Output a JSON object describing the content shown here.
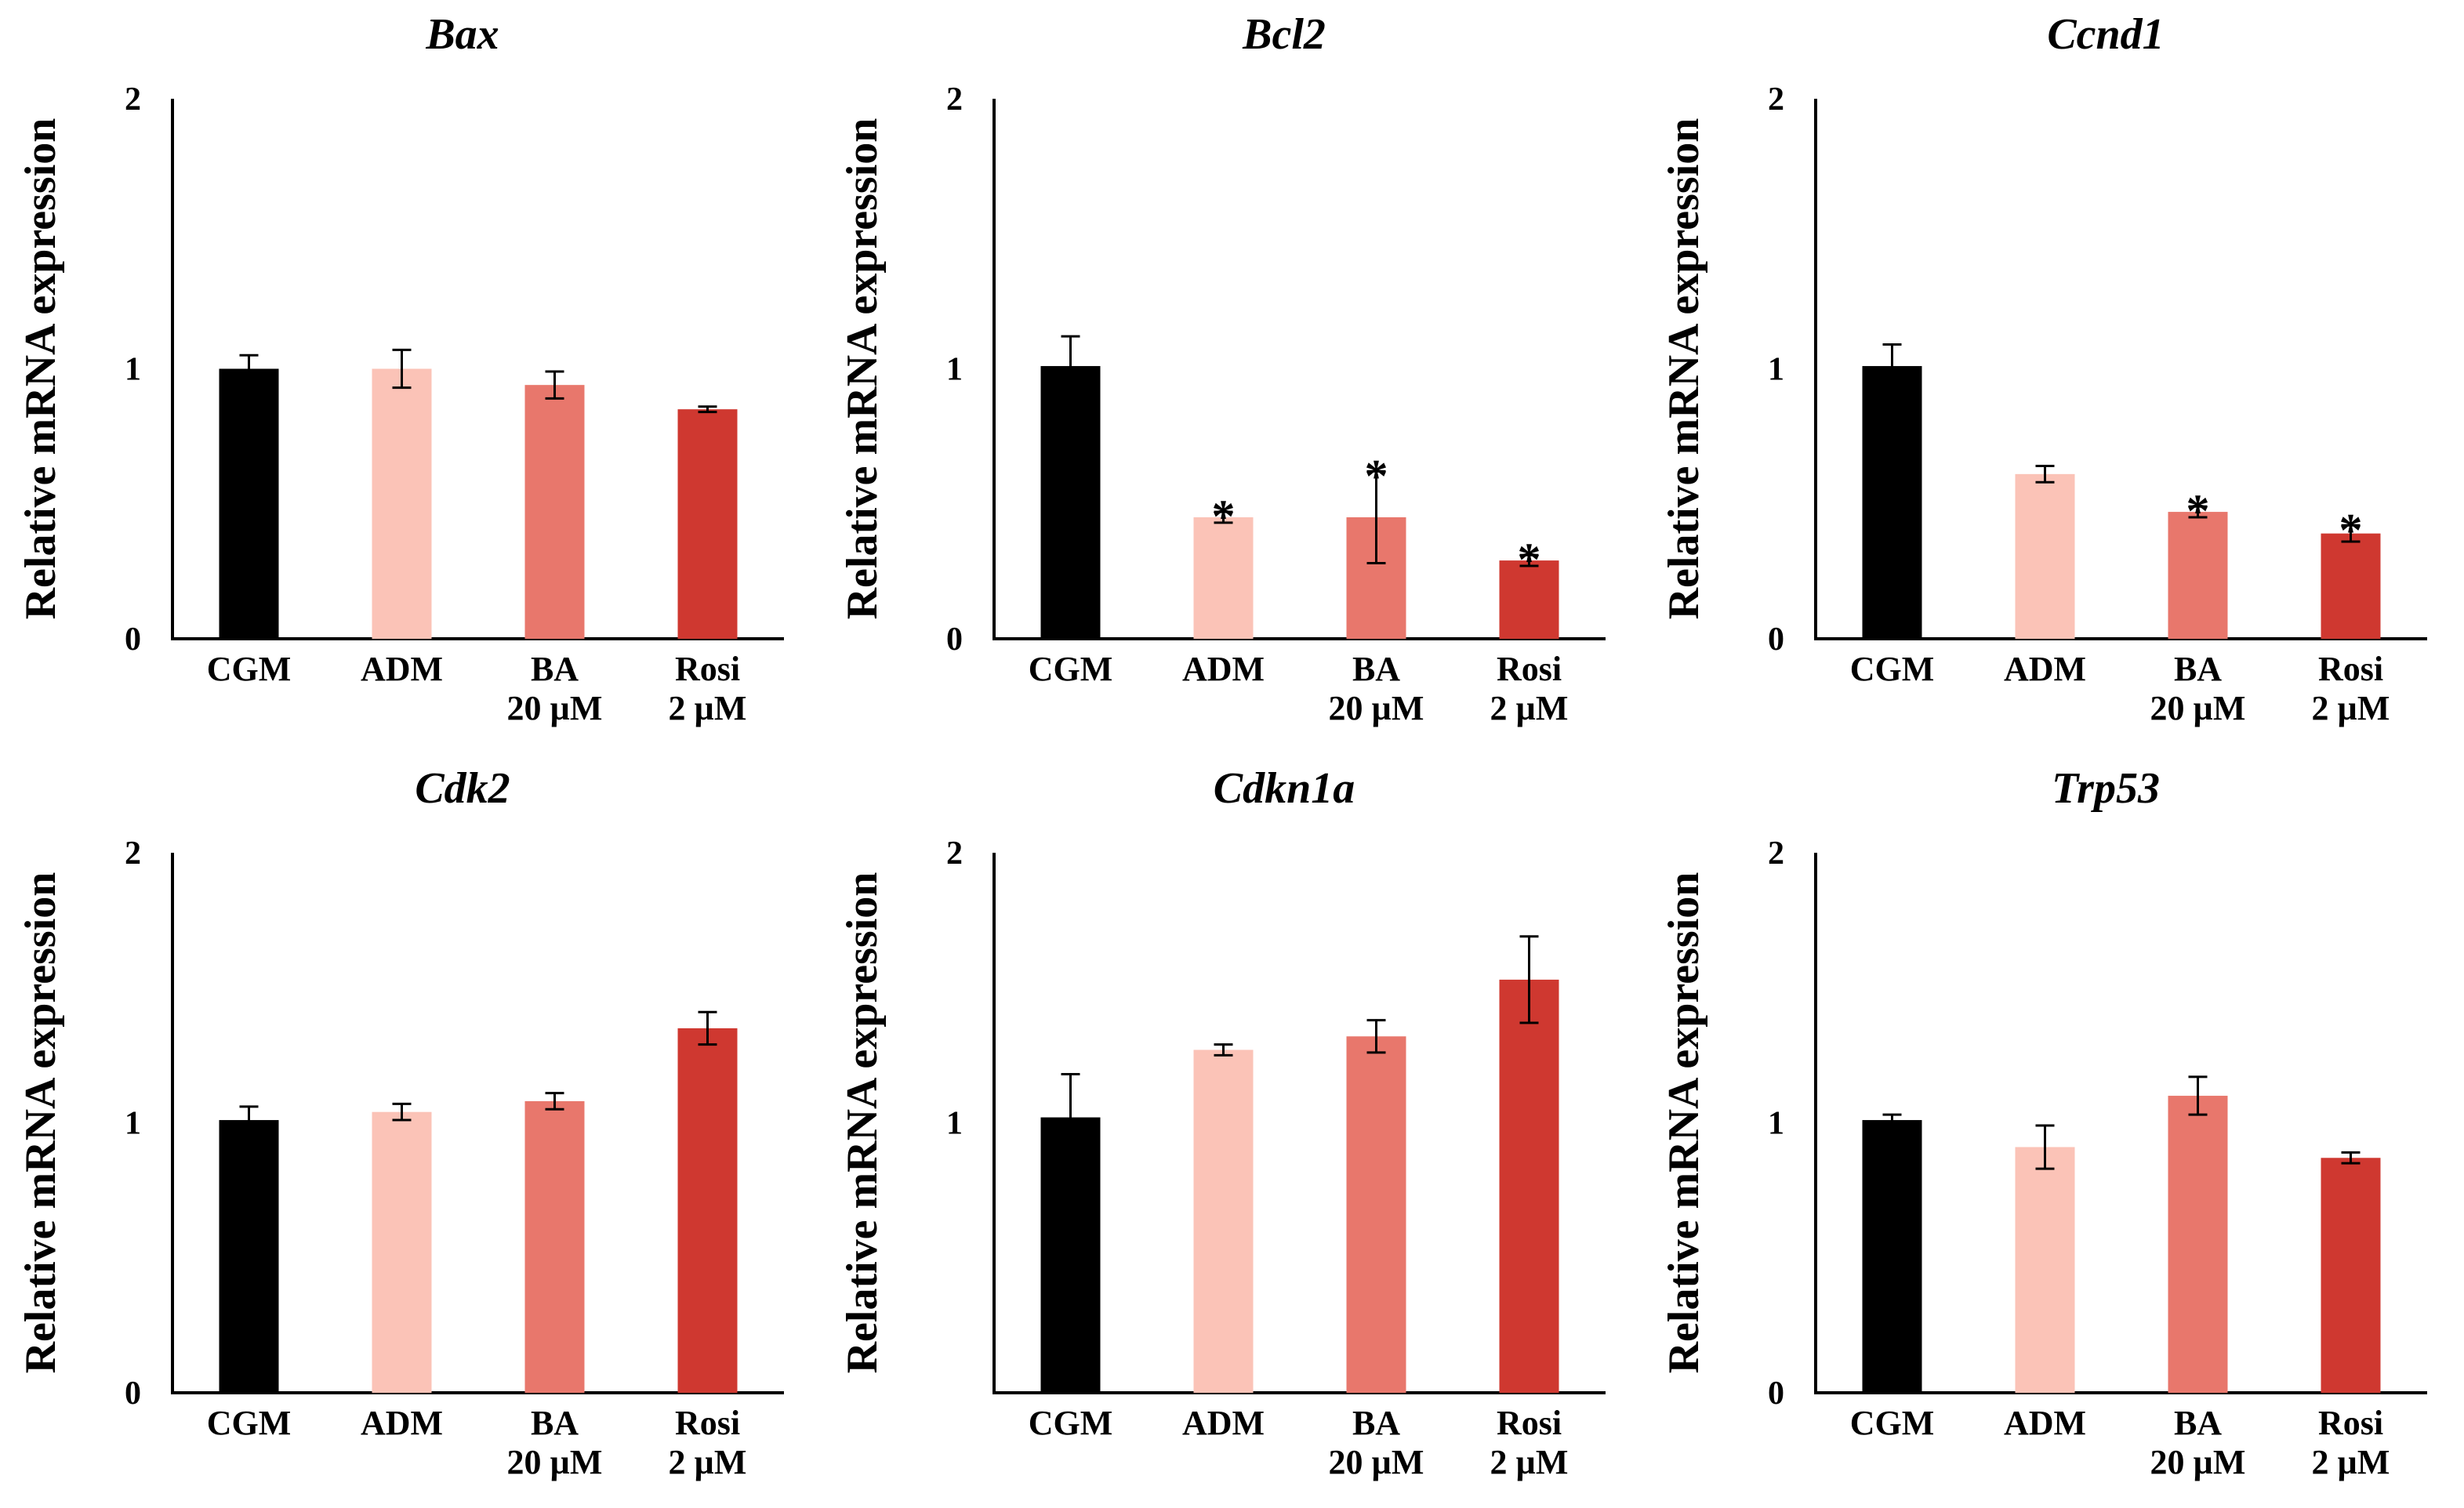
{
  "chart_data": [
    {
      "type": "bar",
      "title": "Bax",
      "ylabel": "Relative mRNA expression",
      "ylim": [
        0,
        2
      ],
      "yticks": [
        "0",
        "1",
        "2"
      ],
      "categories": [
        [
          "CGM"
        ],
        [
          "ADM"
        ],
        [
          "BA",
          "20 µM"
        ],
        [
          "Rosi",
          "2 µM"
        ]
      ],
      "values": [
        1.0,
        1.0,
        0.94,
        0.85
      ],
      "errors": [
        0.05,
        0.07,
        0.05,
        0.01
      ],
      "significance": [
        "",
        "",
        "",
        ""
      ],
      "colors": [
        "#000000",
        "#fbc3b7",
        "#e8776c",
        "#cf3830"
      ]
    },
    {
      "type": "bar",
      "title": "Bcl2",
      "ylabel": "Relative mRNA expression",
      "ylim": [
        0,
        2
      ],
      "yticks": [
        "0",
        "1",
        "2"
      ],
      "categories": [
        [
          "CGM"
        ],
        [
          "ADM"
        ],
        [
          "BA",
          "20 µM"
        ],
        [
          "Rosi",
          "2 µM"
        ]
      ],
      "values": [
        1.01,
        0.45,
        0.45,
        0.29
      ],
      "errors": [
        0.11,
        0.02,
        0.17,
        0.02
      ],
      "significance": [
        "",
        "*",
        "*",
        "*"
      ],
      "colors": [
        "#000000",
        "#fbc3b7",
        "#e8776c",
        "#cf3830"
      ]
    },
    {
      "type": "bar",
      "title": "Ccnd1",
      "ylabel": "Relative mRNA expression",
      "ylim": [
        0,
        2
      ],
      "yticks": [
        "0",
        "1",
        "2"
      ],
      "categories": [
        [
          "CGM"
        ],
        [
          "ADM"
        ],
        [
          "BA",
          "20 µM"
        ],
        [
          "Rosi",
          "2 µM"
        ]
      ],
      "values": [
        1.01,
        0.61,
        0.47,
        0.39
      ],
      "errors": [
        0.08,
        0.03,
        0.02,
        0.03
      ],
      "significance": [
        "",
        "",
        "*",
        "*"
      ],
      "colors": [
        "#000000",
        "#fbc3b7",
        "#e8776c",
        "#cf3830"
      ]
    },
    {
      "type": "bar",
      "title": "Cdk2",
      "ylabel": "Relative mRNA expression",
      "ylim": [
        0,
        2
      ],
      "yticks": [
        "0",
        "1",
        "2"
      ],
      "categories": [
        [
          "CGM"
        ],
        [
          "ADM"
        ],
        [
          "BA",
          "20 µM"
        ],
        [
          "Rosi",
          "2 µM"
        ]
      ],
      "values": [
        1.01,
        1.04,
        1.08,
        1.35
      ],
      "errors": [
        0.05,
        0.03,
        0.03,
        0.06
      ],
      "significance": [
        "",
        "",
        "",
        ""
      ],
      "colors": [
        "#000000",
        "#fbc3b7",
        "#e8776c",
        "#cf3830"
      ]
    },
    {
      "type": "bar",
      "title": "Cdkn1a",
      "ylabel": "Relative mRNA expression",
      "ylim": [
        0,
        2
      ],
      "yticks": [
        "",
        "1",
        "2"
      ],
      "categories": [
        [
          "CGM"
        ],
        [
          "ADM"
        ],
        [
          "BA",
          "20 µM"
        ],
        [
          "Rosi",
          "2 µM"
        ]
      ],
      "values": [
        1.02,
        1.27,
        1.32,
        1.53
      ],
      "errors": [
        0.16,
        0.02,
        0.06,
        0.16
      ],
      "significance": [
        "",
        "",
        "",
        ""
      ],
      "colors": [
        "#000000",
        "#fbc3b7",
        "#e8776c",
        "#cf3830"
      ]
    },
    {
      "type": "bar",
      "title": "Trp53",
      "ylabel": "Relative mRNA expression",
      "ylim": [
        0,
        2
      ],
      "yticks": [
        "0",
        "1",
        "2"
      ],
      "categories": [
        [
          "CGM"
        ],
        [
          "ADM"
        ],
        [
          "BA",
          "20 µM"
        ],
        [
          "Rosi",
          "2 µM"
        ]
      ],
      "values": [
        1.01,
        0.91,
        1.1,
        0.87
      ],
      "errors": [
        0.02,
        0.08,
        0.07,
        0.02
      ],
      "significance": [
        "",
        "",
        "",
        ""
      ],
      "colors": [
        "#000000",
        "#fbc3b7",
        "#e8776c",
        "#cf3830"
      ]
    }
  ]
}
